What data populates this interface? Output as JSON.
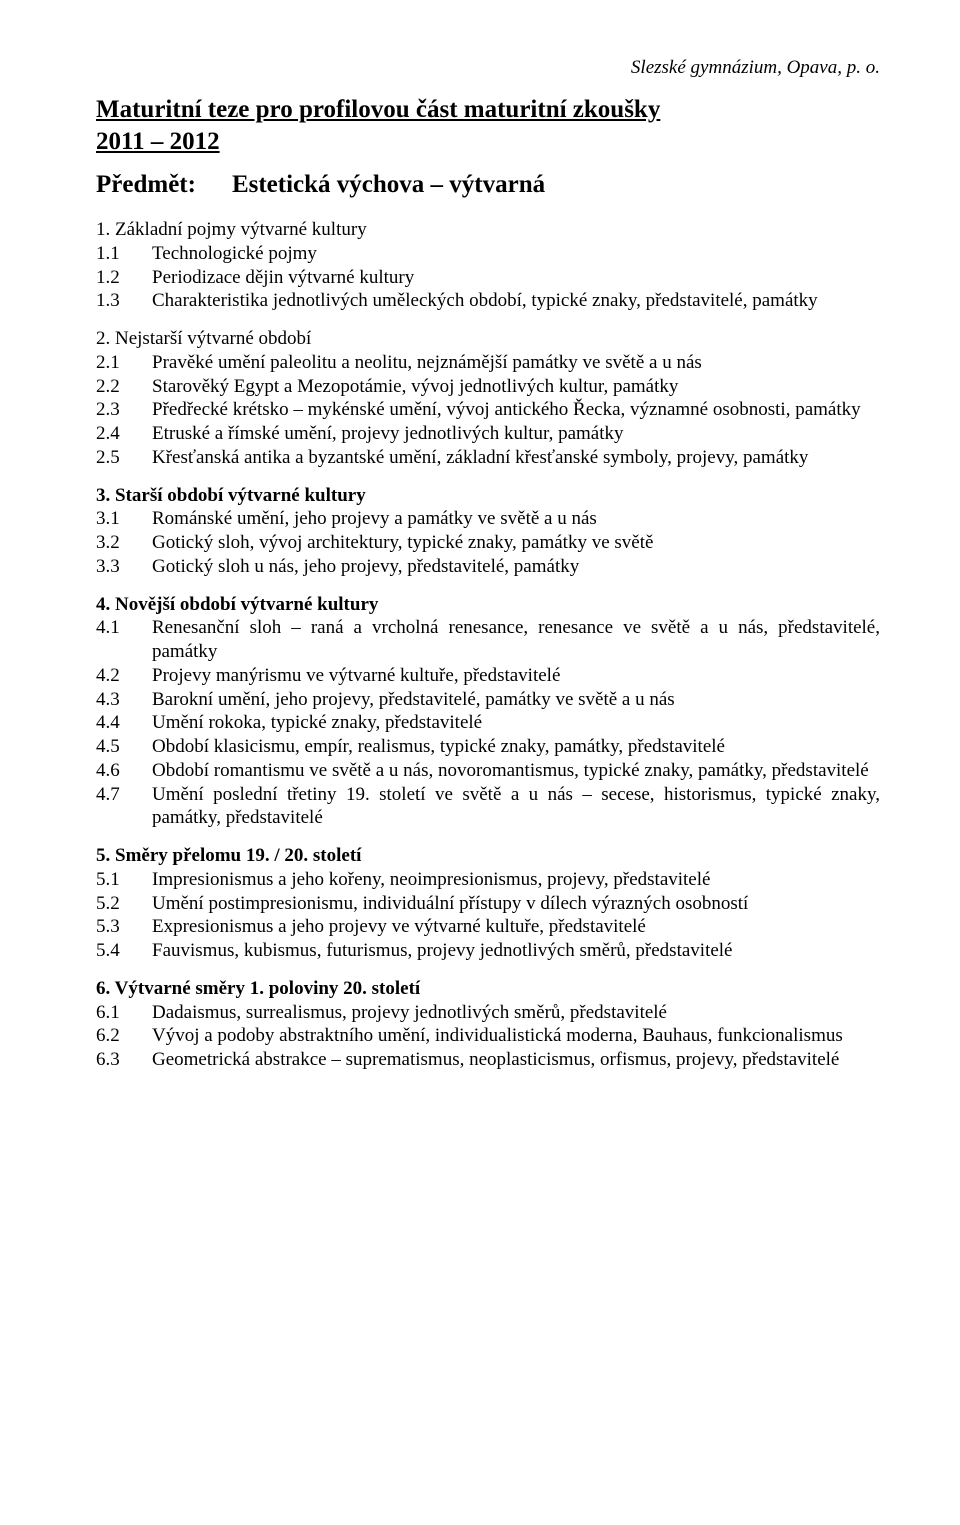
{
  "header": {
    "institution": "Slezské gymnázium, Opava, p. o."
  },
  "title": {
    "line1": "Maturitní teze pro profilovou část maturitní zkoušky",
    "line2": "2011 – 2012"
  },
  "subject": {
    "label": "Předmět:",
    "value": "Estetická výchova – výtvarná"
  },
  "sections": [
    {
      "head": "1. Základní pojmy výtvarné kultury",
      "bold": false,
      "items": [
        {
          "num": "1.1",
          "text": "Technologické pojmy"
        },
        {
          "num": "1.2",
          "text": "Periodizace dějin výtvarné kultury"
        },
        {
          "num": "1.3",
          "text": "Charakteristika jednotlivých uměleckých období, typické znaky, představitelé, památky"
        }
      ]
    },
    {
      "head": "2. Nejstarší výtvarné období",
      "bold": false,
      "items": [
        {
          "num": "2.1",
          "text": "Pravěké umění paleolitu a neolitu, nejznámější památky ve světě a u nás"
        },
        {
          "num": "2.2",
          "text": "Starověký Egypt a Mezopotámie, vývoj jednotlivých kultur, památky"
        },
        {
          "num": "2.3",
          "text": "Předřecké krétsko – mykénské umění, vývoj antického Řecka, významné osobnosti, památky"
        },
        {
          "num": "2.4",
          "text": "Etruské a římské umění, projevy jednotlivých kultur, památky"
        },
        {
          "num": "2.5",
          "text": "Křesťanská antika a byzantské umění, základní křesťanské symboly, projevy, památky"
        }
      ]
    },
    {
      "head": "3. Starší období výtvarné kultury",
      "bold": true,
      "items": [
        {
          "num": "3.1",
          "text": "Románské umění, jeho projevy a památky ve světě a u nás"
        },
        {
          "num": "3.2",
          "text": "Gotický sloh, vývoj architektury, typické znaky, památky ve světě"
        },
        {
          "num": "3.3",
          "text": "Gotický sloh u nás, jeho projevy, představitelé, památky"
        }
      ]
    },
    {
      "head": "4. Novější období výtvarné kultury",
      "bold": true,
      "items": [
        {
          "num": "4.1",
          "text": "Renesanční sloh – raná a vrcholná renesance, renesance ve světě a u nás, představitelé, památky"
        },
        {
          "num": "4.2",
          "text": "Projevy manýrismu ve výtvarné kultuře, představitelé"
        },
        {
          "num": "4.3",
          "text": "Barokní umění, jeho projevy, představitelé, památky ve světě a u nás"
        },
        {
          "num": "4.4",
          "text": "Umění rokoka, typické znaky, představitelé"
        },
        {
          "num": "4.5",
          "text": "Období klasicismu, empír, realismus, typické znaky, památky, představitelé"
        },
        {
          "num": "4.6",
          "text": "Období romantismu ve světě a u nás, novoromantismus, typické znaky, památky, představitelé"
        },
        {
          "num": "4.7",
          "text": "Umění poslední třetiny 19. století ve světě a u nás – secese, historismus, typické znaky, památky, představitelé"
        }
      ]
    },
    {
      "head": "5. Směry přelomu 19. / 20. století",
      "bold": true,
      "items": [
        {
          "num": "5.1",
          "text": "Impresionismus a jeho kořeny, neoimpresionismus, projevy, představitelé"
        },
        {
          "num": "5.2",
          "text": "Umění postimpresionismu, individuální přístupy v dílech výrazných osobností"
        },
        {
          "num": "5.3",
          "text": "Expresionismus a jeho projevy ve výtvarné kultuře, představitelé"
        },
        {
          "num": "5.4",
          "text": "Fauvismus, kubismus, futurismus, projevy jednotlivých směrů, představitelé"
        }
      ]
    },
    {
      "head": "6. Výtvarné směry 1. poloviny 20. století",
      "bold": true,
      "items": [
        {
          "num": "6.1",
          "text": "Dadaismus, surrealismus, projevy jednotlivých směrů, představitelé"
        },
        {
          "num": "6.2",
          "text": "Vývoj a podoby abstraktního umění, individualistická moderna, Bauhaus, funkcionalismus"
        },
        {
          "num": "6.3",
          "text": "Geometrická abstrakce – suprematismus, neoplasticismus, orfismus, projevy, představitelé"
        }
      ]
    }
  ]
}
